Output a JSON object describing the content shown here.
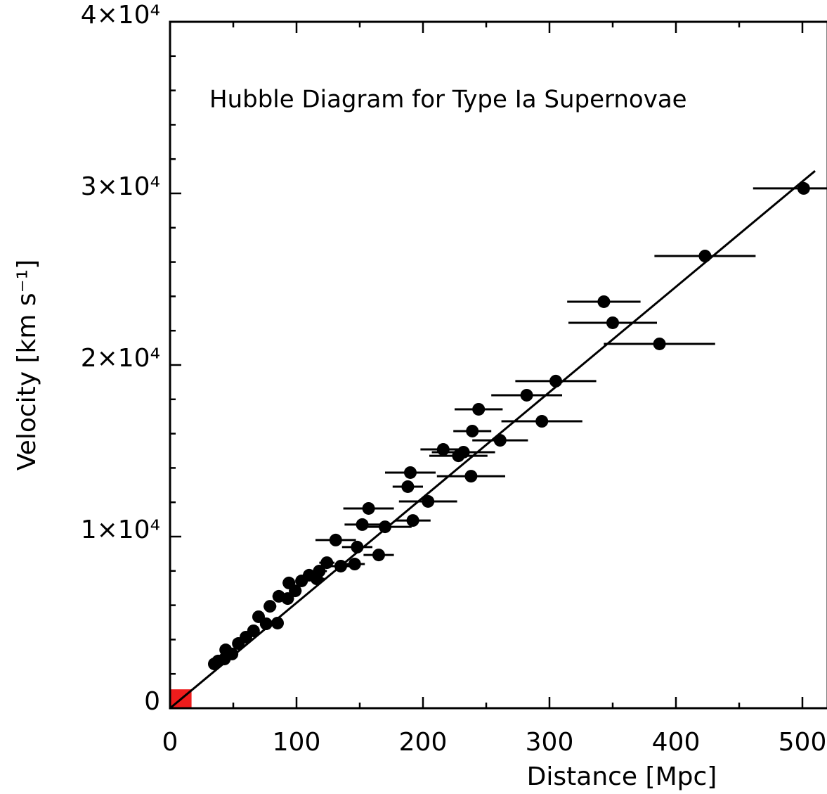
{
  "chart_data": {
    "type": "scatter",
    "title": "Hubble Diagram for Type Ia Supernovae",
    "x_label": "Distance [Mpc]",
    "y_label": "Velocity [km s⁻¹]",
    "xlim": [
      0,
      520
    ],
    "ylim": [
      0,
      40000
    ],
    "xticks": [
      0,
      100,
      200,
      300,
      400,
      500
    ],
    "yticks": [
      0,
      {
        "value": 10000,
        "label": "1×10⁴"
      },
      {
        "value": 20000,
        "label": "2×10⁴"
      },
      {
        "value": 30000,
        "label": "3×10⁴"
      },
      {
        "value": 40000,
        "label": "4×10⁴"
      }
    ],
    "xminorticks": [
      50,
      150,
      250,
      350,
      450
    ],
    "yminorticks": [
      2000,
      4000,
      6000,
      8000,
      12000,
      14000,
      16000,
      18000,
      22000,
      24000,
      26000,
      28000,
      32000,
      34000,
      36000,
      38000
    ],
    "series": [
      {
        "color": "#000000",
        "x": [
          501,
          423,
          343,
          350,
          387,
          305,
          282,
          294,
          244,
          239,
          261,
          216,
          232,
          228,
          238,
          190,
          188,
          204,
          192,
          157,
          152,
          170,
          131,
          148,
          165,
          135,
          124,
          118,
          110,
          104,
          99,
          93,
          86,
          79,
          70,
          76,
          85,
          66,
          60,
          54,
          49,
          44,
          38,
          43,
          35,
          94,
          116,
          146
        ],
        "values": [
          30290,
          26350,
          23690,
          22460,
          21230,
          19060,
          18240,
          16720,
          17420,
          16150,
          15610,
          15080,
          14920,
          14710,
          13520,
          13730,
          12910,
          12050,
          10940,
          11640,
          10700,
          10570,
          9800,
          9390,
          8930,
          8280,
          8480,
          7990,
          7750,
          7420,
          6840,
          6390,
          6520,
          5940,
          5330,
          4920,
          4960,
          4510,
          4140,
          3770,
          3160,
          3400,
          2750,
          2870,
          2580,
          7300,
          7540,
          8400
        ],
        "xerr": [
          40,
          40,
          29,
          35,
          44,
          32,
          28,
          32,
          19,
          15,
          22,
          18,
          25,
          23,
          27,
          20,
          12,
          23,
          14,
          20,
          14,
          21,
          16,
          12,
          12,
          8,
          6,
          6,
          5,
          5,
          5,
          5,
          5,
          5,
          4,
          4,
          4,
          4,
          4,
          3,
          3,
          3,
          3,
          3,
          3,
          5,
          6,
          8
        ]
      }
    ],
    "fit": {
      "color": "#000000",
      "x": [
        0,
        510
      ],
      "values": [
        0,
        31310
      ]
    },
    "highlight": {
      "color": "#ee1c1c",
      "x": [
        0,
        17
      ],
      "values": [
        0,
        1100
      ]
    }
  }
}
